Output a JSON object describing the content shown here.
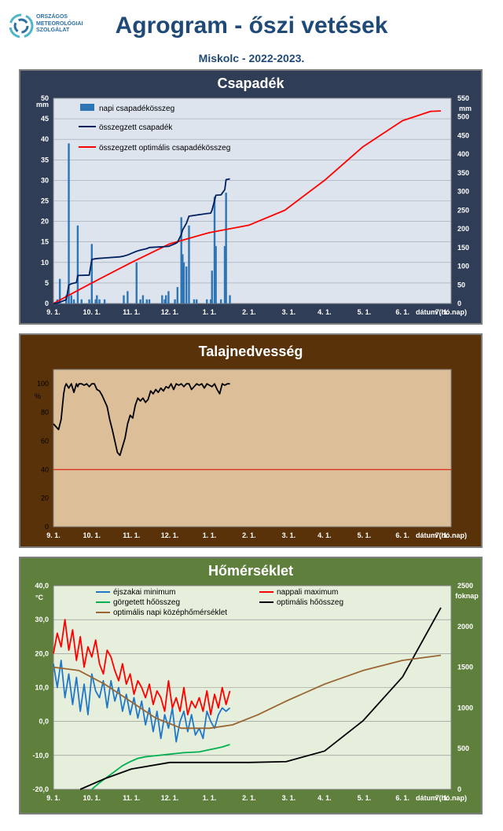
{
  "header": {
    "logo_text": "ORSZÁGOS\nMETEOROLÓGIAI\nSZOLGÁLAT",
    "title": "Agrogram - őszi vetések",
    "subtitle": "Miskolc - 2022-2023."
  },
  "colors": {
    "precip_bar": "#2e75b6",
    "cum_precip": "#002060",
    "optimal": "#ff0000",
    "soil": "#000000",
    "night_min": "#1f78c8",
    "day_max": "#ff0000",
    "rolling_heat": "#00b050",
    "optimal_heat_sum": "#000000",
    "optimal_mean_temp": "#996633"
  },
  "chart_data": [
    {
      "type": "bar",
      "title": "Csapadék",
      "ylabel": "mm",
      "y2label": "mm",
      "ylim": [
        0,
        50
      ],
      "y2lim": [
        0,
        550
      ],
      "yticks": [
        "0",
        "5",
        "10",
        "15",
        "20",
        "25",
        "30",
        "35",
        "40",
        "45",
        "50"
      ],
      "y2ticks": [
        "0",
        "50",
        "100",
        "150",
        "200",
        "250",
        "300",
        "350",
        "400",
        "450",
        "500",
        "550"
      ],
      "xticks": [
        "9. 1.",
        "10. 1.",
        "11. 1.",
        "12. 1.",
        "1. 1.",
        "2. 1.",
        "3. 1.",
        "4. 1.",
        "5. 1.",
        "6. 1.",
        "7. 1."
      ],
      "xlabel": "dátum (hó.nap)",
      "grid": true,
      "legend_position": "top-left",
      "series": [
        {
          "name": "napi csapadékösszeg",
          "kind": "bar",
          "x_day": [
            3,
            5,
            10,
            12,
            14,
            16,
            19,
            22,
            28,
            30,
            33,
            34,
            36,
            40,
            55,
            58,
            65,
            68,
            70,
            73,
            75,
            85,
            87,
            88,
            90,
            95,
            97,
            100,
            101,
            102,
            104,
            106,
            110,
            112,
            120,
            123,
            124,
            126,
            127,
            131,
            134,
            135,
            138
          ],
          "values": [
            1,
            6,
            2,
            39,
            2,
            1,
            19,
            1,
            1,
            14.5,
            1,
            2,
            1,
            1,
            2,
            3,
            10,
            1,
            2,
            1,
            1,
            2,
            1,
            2,
            3,
            1,
            4,
            21,
            12,
            10,
            9,
            19,
            1,
            1,
            1,
            1,
            8,
            26,
            14,
            1,
            14,
            27,
            2
          ]
        },
        {
          "name": "összegzett csapadék",
          "kind": "line",
          "x_day": [
            0,
            3,
            10,
            12,
            14,
            18,
            19,
            28,
            30,
            33,
            36,
            40,
            52,
            55,
            58,
            65,
            68,
            73,
            75,
            85,
            90,
            95,
            97,
            100,
            101,
            104,
            106,
            110,
            120,
            123,
            124,
            126,
            127,
            131,
            134,
            135,
            138
          ],
          "values": [
            0,
            1,
            10,
            49,
            53,
            56,
            75,
            76,
            118,
            120,
            121,
            122,
            125,
            127,
            130,
            140,
            143,
            147,
            150,
            152,
            153,
            160,
            164,
            185,
            197,
            215,
            234,
            236,
            241,
            242,
            250,
            276,
            290,
            291,
            305,
            332,
            334
          ]
        },
        {
          "name": "összegzett optimális  csapadékösszeg",
          "kind": "line",
          "x_day": [
            0,
            30,
            61,
            91,
            122,
            153,
            181,
            212,
            242,
            273,
            295,
            303
          ],
          "values": [
            0,
            55,
            110,
            160,
            190,
            210,
            250,
            330,
            420,
            490,
            515,
            516
          ]
        }
      ]
    },
    {
      "type": "line",
      "title": "Talajnedvesség",
      "ylabel": "%",
      "ylim": [
        0,
        110
      ],
      "yticks": [
        "0",
        "20",
        "40",
        "60",
        "80",
        "100"
      ],
      "xticks": [
        "9. 1.",
        "10. 1.",
        "11. 1.",
        "12. 1.",
        "1. 1.",
        "2. 1.",
        "3. 1.",
        "4. 1.",
        "5. 1.",
        "6. 1.",
        "7. 1."
      ],
      "xlabel": "dátum (hó.nap)",
      "threshold": 40,
      "series": [
        {
          "name": "talajnedvesség",
          "x_day": [
            0,
            2,
            4,
            6,
            8,
            9,
            10,
            12,
            14,
            16,
            18,
            19,
            20,
            22,
            24,
            26,
            28,
            30,
            32,
            34,
            36,
            38,
            40,
            42,
            44,
            46,
            48,
            50,
            52,
            54,
            56,
            58,
            60,
            62,
            64,
            66,
            68,
            70,
            72,
            74,
            76,
            78,
            80,
            82,
            84,
            86,
            88,
            90,
            92,
            94,
            96,
            98,
            100,
            102,
            104,
            106,
            108,
            110,
            112,
            114,
            116,
            118,
            120,
            122,
            124,
            126,
            128,
            130,
            132,
            134,
            136,
            138
          ],
          "values": [
            72,
            70,
            68,
            75,
            93,
            98,
            100,
            97,
            100,
            94,
            100,
            98,
            100,
            100,
            99,
            100,
            98,
            100,
            100,
            96,
            95,
            92,
            88,
            84,
            75,
            68,
            60,
            52,
            50,
            56,
            62,
            72,
            78,
            76,
            85,
            90,
            88,
            90,
            87,
            89,
            95,
            93,
            96,
            94,
            97,
            95,
            98,
            97,
            100,
            96,
            100,
            99,
            100,
            98,
            100,
            100,
            96,
            98,
            100,
            99,
            100,
            97,
            100,
            99,
            98,
            100,
            96,
            93,
            100,
            99,
            100,
            100
          ]
        }
      ]
    },
    {
      "type": "line",
      "title": "Hőmérséklet",
      "ylabel": "°C",
      "y2label": "foknap",
      "ylim": [
        -20,
        40
      ],
      "y2lim": [
        0,
        2500
      ],
      "yticks": [
        "-20,0",
        "-10,0",
        "0,0",
        "10,0",
        "20,0",
        "30,0",
        "40,0"
      ],
      "y2ticks": [
        "0",
        "500",
        "1000",
        "1500",
        "2000",
        "2500"
      ],
      "xticks": [
        "9. 1.",
        "10. 1.",
        "11. 1.",
        "12. 1.",
        "1. 1.",
        "2. 1.",
        "3. 1.",
        "4. 1.",
        "5. 1.",
        "6. 1.",
        "7. 1."
      ],
      "xlabel": "dátum (hó.nap)",
      "legend_position": "top",
      "series": [
        {
          "name": "éjszakai minimum",
          "axis": "left",
          "x_day": [
            0,
            3,
            6,
            9,
            12,
            15,
            18,
            21,
            24,
            27,
            30,
            33,
            36,
            39,
            42,
            45,
            48,
            51,
            54,
            57,
            60,
            63,
            66,
            69,
            72,
            75,
            78,
            81,
            84,
            87,
            90,
            93,
            96,
            99,
            102,
            105,
            108,
            111,
            114,
            117,
            120,
            123,
            126,
            129,
            132,
            135,
            138
          ],
          "values": [
            17,
            10,
            18,
            7,
            14,
            5,
            13,
            3,
            11,
            2,
            14,
            9,
            7,
            12,
            4,
            12,
            6,
            10,
            3,
            8,
            2,
            7,
            1,
            6,
            -1,
            4,
            -3,
            3,
            -5,
            2,
            -2,
            4,
            -6,
            0,
            3,
            -3,
            2,
            -4,
            -2,
            -5,
            3,
            0,
            -2,
            2,
            4,
            3,
            4
          ]
        },
        {
          "name": "nappali maximum",
          "axis": "left",
          "x_day": [
            0,
            3,
            6,
            9,
            12,
            15,
            18,
            21,
            24,
            27,
            30,
            33,
            36,
            39,
            42,
            45,
            48,
            51,
            54,
            57,
            60,
            63,
            66,
            69,
            72,
            75,
            78,
            81,
            84,
            87,
            90,
            93,
            96,
            99,
            102,
            105,
            108,
            111,
            114,
            117,
            120,
            123,
            126,
            129,
            132,
            135,
            138
          ],
          "values": [
            20,
            26,
            22,
            30,
            21,
            27,
            18,
            25,
            16,
            22,
            19,
            24,
            17,
            14,
            21,
            19,
            15,
            12,
            17,
            11,
            14,
            8,
            12,
            10,
            7,
            11,
            5,
            9,
            7,
            3,
            12,
            4,
            7,
            3,
            10,
            2,
            6,
            4,
            7,
            3,
            9,
            2,
            8,
            4,
            10,
            5,
            9
          ]
        },
        {
          "name": "görgetett hőösszeg",
          "axis": "right",
          "x_day": [
            30,
            36,
            42,
            48,
            54,
            60,
            66,
            72,
            78,
            84,
            90,
            96,
            102,
            108,
            114,
            120,
            126,
            132,
            138
          ],
          "values": [
            0,
            80,
            150,
            220,
            290,
            340,
            380,
            400,
            410,
            420,
            430,
            440,
            450,
            455,
            460,
            480,
            500,
            520,
            550
          ]
        },
        {
          "name": "optimális hőösszeg",
          "axis": "right",
          "x_day": [
            21,
            40,
            61,
            91,
            122,
            153,
            182,
            212,
            242,
            273,
            303
          ],
          "values": [
            0,
            130,
            250,
            330,
            330,
            330,
            340,
            470,
            840,
            1380,
            2230
          ]
        },
        {
          "name": "optimális napi középhőmérséklet",
          "axis": "left",
          "x_day": [
            0,
            20,
            40,
            60,
            80,
            100,
            122,
            140,
            160,
            182,
            212,
            242,
            273,
            303
          ],
          "values": [
            16,
            15,
            11,
            6,
            1,
            -2,
            -2,
            -1,
            2,
            6,
            11,
            15,
            18,
            19.5
          ]
        }
      ]
    }
  ]
}
